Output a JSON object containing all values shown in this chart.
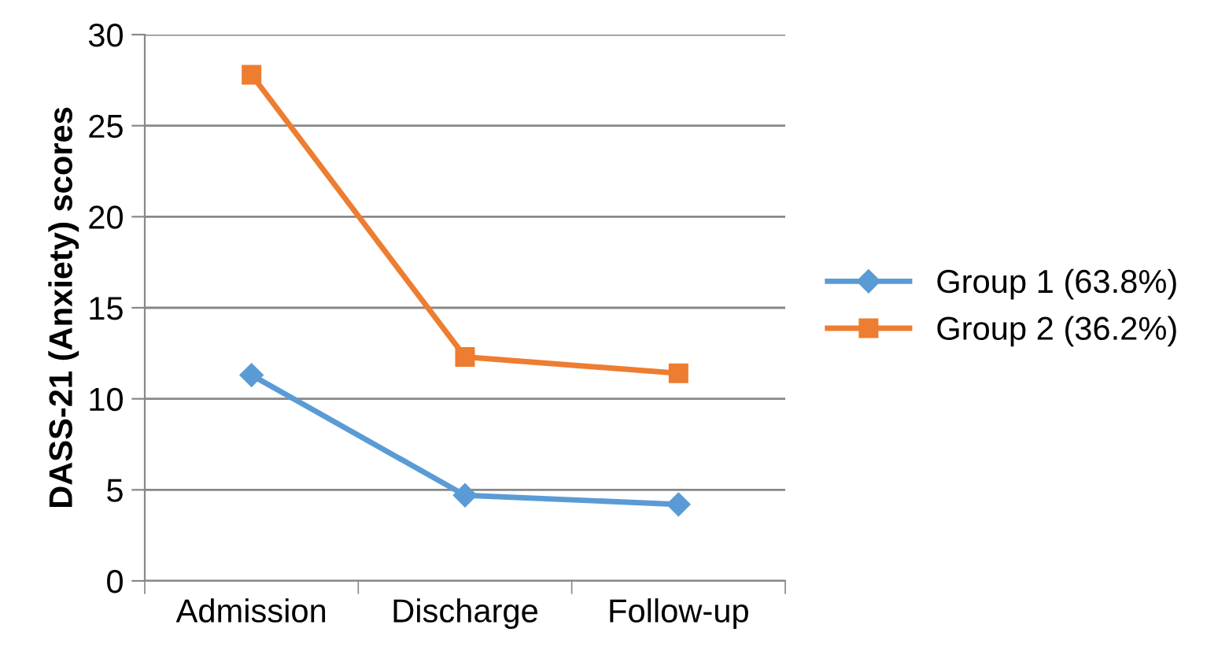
{
  "chart_data": {
    "type": "line",
    "ylabel": "DASS-21 (Anxiety) scores",
    "categories": [
      "Admission",
      "Discharge",
      "Follow-up"
    ],
    "series": [
      {
        "name": "Group 1 (63.8%)",
        "color": "#5b9bd5",
        "marker": "diamond",
        "values": [
          11.3,
          4.7,
          4.2
        ]
      },
      {
        "name": "Group 2 (36.2%)",
        "color": "#ed7d31",
        "marker": "square",
        "values": [
          27.8,
          12.3,
          11.4
        ]
      }
    ],
    "ylim": [
      0,
      30
    ],
    "yticks": [
      0,
      5,
      10,
      15,
      20,
      25,
      30
    ],
    "grid": "y",
    "legend": "right",
    "line_style": "solid"
  }
}
